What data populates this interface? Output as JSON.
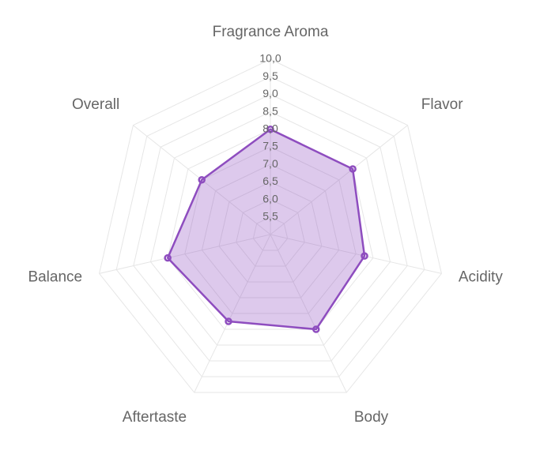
{
  "chart_data": {
    "type": "radar",
    "categories": [
      "Fragrance Aroma",
      "Flavor",
      "Acidity",
      "Body",
      "Aftertaste",
      "Balance",
      "Overall"
    ],
    "values": [
      8.0,
      8.0,
      7.75,
      8.0,
      7.75,
      8.0,
      7.5
    ],
    "color": "#8e4dbf",
    "ylim": [
      5,
      10
    ],
    "yticks": [
      {
        "value": 5.5,
        "label": "5,5"
      },
      {
        "value": 6,
        "label": "6,0"
      },
      {
        "value": 6.5,
        "label": "6,5"
      },
      {
        "value": 7,
        "label": "7,0"
      },
      {
        "value": 7.5,
        "label": "7,5"
      },
      {
        "value": 8,
        "label": "8,0"
      },
      {
        "value": 8.5,
        "label": "8,5"
      },
      {
        "value": 9,
        "label": "9,0"
      },
      {
        "value": 9.5,
        "label": "9,5"
      },
      {
        "value": 10,
        "label": "10,0"
      }
    ],
    "grid": true
  }
}
